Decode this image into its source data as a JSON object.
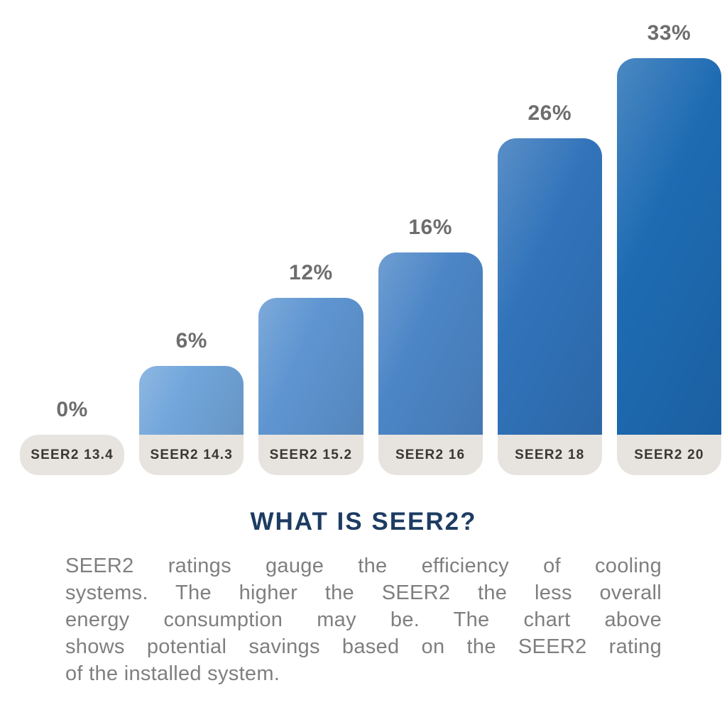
{
  "chart_data": {
    "type": "bar",
    "title": "",
    "categories": [
      "SEER2 13.4",
      "SEER2 14.3",
      "SEER2 15.2",
      "SEER2 16",
      "SEER2 18",
      "SEER2 20"
    ],
    "values": [
      0,
      6,
      12,
      16,
      26,
      33
    ],
    "value_labels": [
      "0%",
      "6%",
      "12%",
      "16%",
      "26%",
      "33%"
    ],
    "unit": "percent savings",
    "ylim": [
      0,
      33
    ],
    "grid": false,
    "legend": false,
    "orientation": "vertical",
    "bar_colors": [
      null,
      "#72a6db",
      "#5e95d1",
      "#4c86c7",
      "#3173ba",
      "#1e6bb3"
    ],
    "value_label_color": "#6d6d6d",
    "category_pill_color": "#e7e4df",
    "category_text_color": "#3a3631"
  },
  "info": {
    "title": "WHAT IS SEER2?",
    "title_color": "#1d3c63",
    "body_color": "#7f7f7f",
    "body_lines": [
      "SEER2 ratings gauge the efficiency of cooling",
      "systems. The higher the SEER2 the less overall",
      "energy consumption may be. The chart above",
      "shows potential savings based on the SEER2 rating",
      "of the installed system."
    ]
  }
}
